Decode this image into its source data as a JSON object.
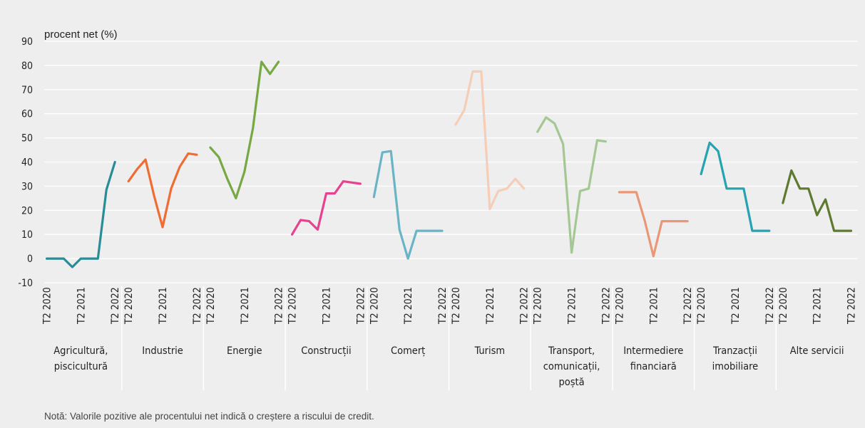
{
  "chart_data": {
    "type": "line",
    "unit_label": "procent net (%)",
    "ylim": [
      -10,
      90
    ],
    "y_ticks": [
      -10,
      0,
      10,
      20,
      30,
      40,
      50,
      60,
      70,
      80,
      90
    ],
    "grid": "horizontal",
    "tick_labels": [
      "T2 2020",
      "T2 2021",
      "T2 2022"
    ],
    "x_periods": [
      "T2 2020",
      "T3 2020",
      "T4 2020",
      "T1 2021",
      "T2 2021",
      "T3 2021",
      "T4 2021",
      "T1 2022",
      "T2 2022"
    ],
    "groups": [
      {
        "label_lines": [
          "Agricultură,",
          "piscicultură"
        ],
        "color": "#2a8c96",
        "values": [
          0,
          0,
          0,
          -3.5,
          0,
          0,
          0,
          28.5,
          40
        ]
      },
      {
        "label_lines": [
          "Industrie"
        ],
        "color": "#ef6c33",
        "values": [
          32,
          37,
          41,
          26,
          13,
          29,
          38,
          43.5,
          43
        ]
      },
      {
        "label_lines": [
          "Energie"
        ],
        "color": "#76a843",
        "values": [
          46,
          42,
          33,
          25,
          36,
          54,
          81.5,
          76.5,
          81.5
        ]
      },
      {
        "label_lines": [
          "Construcții"
        ],
        "color": "#e7428f",
        "values": [
          10,
          16,
          15.5,
          12,
          27,
          27,
          32,
          31.5,
          31
        ]
      },
      {
        "label_lines": [
          "Comerț"
        ],
        "color": "#6ab4c5",
        "values": [
          25.5,
          44,
          44.5,
          12,
          0,
          11.5,
          11.5,
          11.5,
          11.5
        ]
      },
      {
        "label_lines": [
          "Turism"
        ],
        "color": "#f6cdb6",
        "values": [
          55.5,
          61.5,
          77.5,
          77.5,
          20.5,
          28,
          29,
          33,
          29
        ]
      },
      {
        "label_lines": [
          "Transport,",
          "comunicații,",
          "poștă"
        ],
        "color": "#a5c793",
        "values": [
          52.5,
          58.5,
          56,
          47.5,
          2.5,
          28,
          29,
          49,
          48.5
        ]
      },
      {
        "label_lines": [
          "Intermediere",
          "financiară"
        ],
        "color": "#e99776",
        "values": [
          27.5,
          27.5,
          27.5,
          15.5,
          1,
          15.5,
          15.5,
          15.5,
          15.5
        ]
      },
      {
        "label_lines": [
          "Tranzacții",
          "imobiliare"
        ],
        "color": "#26a3b0",
        "values": [
          35,
          48,
          44.5,
          29,
          29,
          29,
          11.5,
          11.5,
          11.5
        ]
      },
      {
        "label_lines": [
          "Alte servicii"
        ],
        "color": "#5e7a30",
        "values": [
          23,
          36.5,
          29,
          29,
          18,
          24.5,
          11.5,
          11.5,
          11.5
        ]
      }
    ]
  },
  "note": "Notă: Valorile pozitive ale procentului net indică o creștere a riscului de credit."
}
